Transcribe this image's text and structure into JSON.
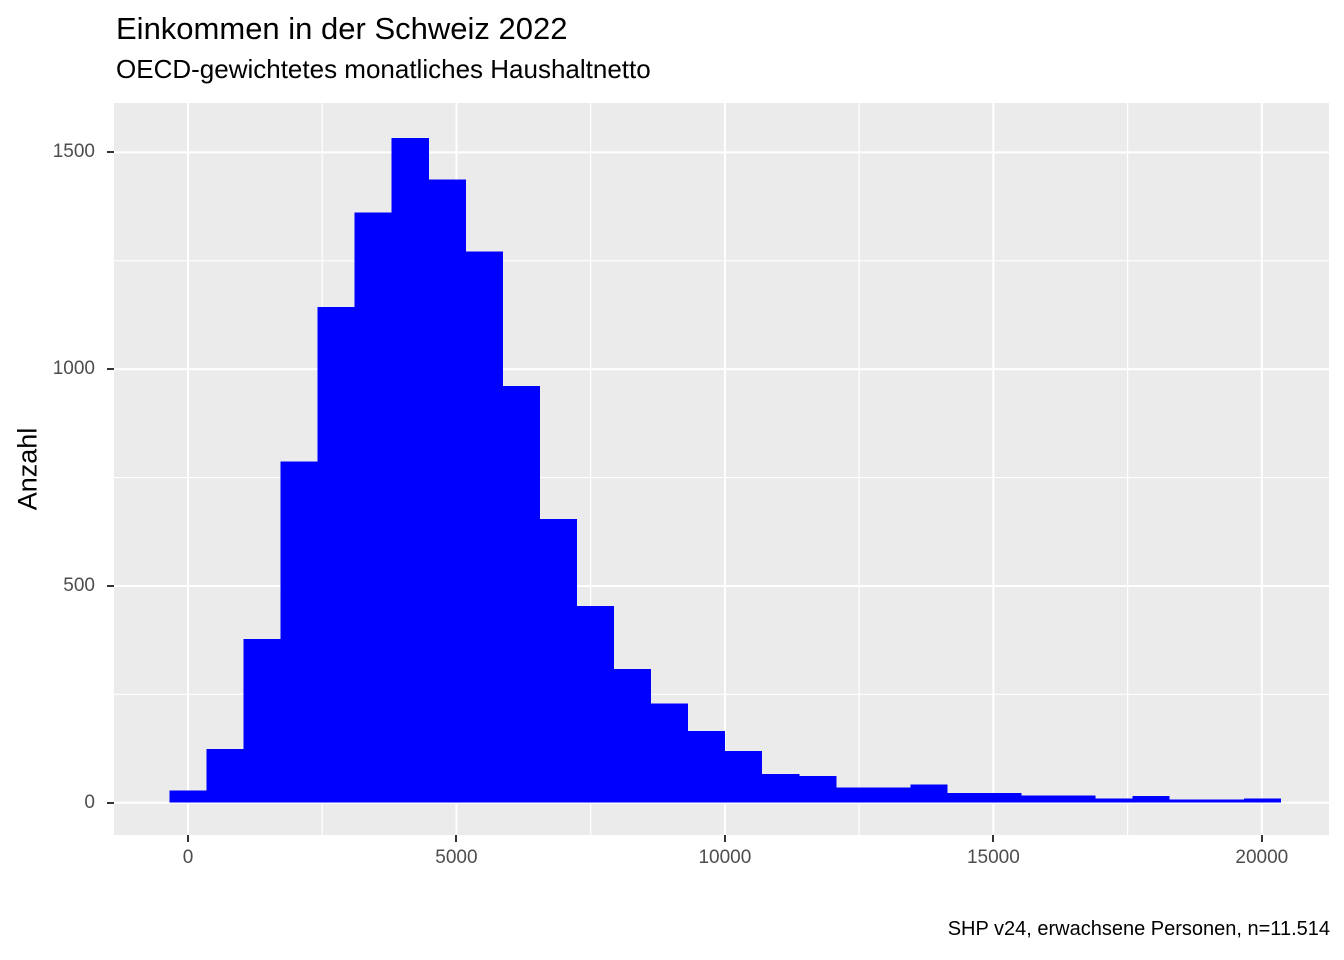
{
  "header": {
    "title": "Einkommen in der Schweiz 2022",
    "subtitle": "OECD-gewichtetes monatliches Haushaltnetto"
  },
  "caption": "SHP v24, erwachsene Personen, n=11.514",
  "chart_data": {
    "type": "bar",
    "subtype": "histogram",
    "title": "Einkommen in der Schweiz 2022",
    "subtitle": "OECD-gewichtetes monatliches Haushaltnetto",
    "caption": "SHP v24, erwachsene Personen, n=11.514",
    "xlabel": "",
    "ylabel": "Anzahl",
    "bin_width": 690,
    "bin_centers": [
      0,
      690,
      1380,
      2070,
      2760,
      3450,
      4140,
      4830,
      5520,
      6210,
      6900,
      7590,
      8280,
      8970,
      9660,
      10350,
      11040,
      11730,
      12420,
      13110,
      13800,
      14490,
      15180,
      15870,
      16560,
      17250,
      17940,
      18630,
      19320,
      20010
    ],
    "counts": [
      28,
      124,
      378,
      787,
      1143,
      1361,
      1533,
      1438,
      1271,
      961,
      654,
      454,
      308,
      229,
      165,
      119,
      66,
      62,
      35,
      35,
      42,
      22,
      22,
      17,
      17,
      10,
      15,
      7,
      7,
      10
    ],
    "xticks": [
      0,
      5000,
      10000,
      15000,
      20000
    ],
    "x_tick_labels": [
      "0",
      "5000",
      "10000",
      "15000",
      "20000"
    ],
    "yticks": [
      0,
      500,
      1000,
      1500
    ],
    "y_tick_labels": [
      "0",
      "500",
      "1000",
      "1500"
    ],
    "xlim": [
      -1378,
      21251
    ],
    "ylim": [
      -74.5,
      1614
    ],
    "grid": "major-and-minor",
    "legend": "none",
    "bar_color": "#0000FF",
    "panel_bg": "#EBEBEB",
    "grid_color": "#FFFFFF",
    "axis_text_color": "#4D4D4D",
    "tick_mark_color": "#333333"
  }
}
